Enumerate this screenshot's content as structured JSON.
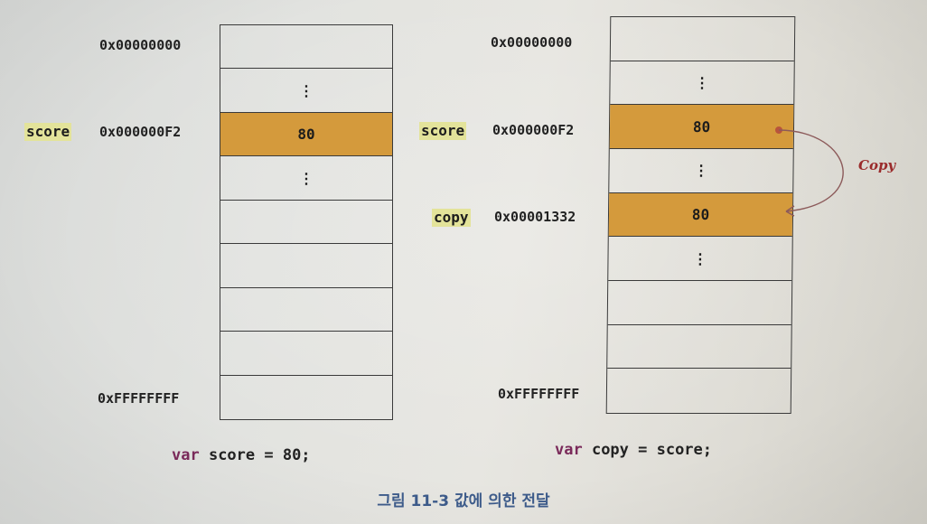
{
  "left": {
    "addr_top": "0x00000000",
    "addr_score": "0x000000F2",
    "addr_bottom": "0xFFFFFFFF",
    "var_score": "score",
    "cells": [
      {
        "text": ""
      },
      {
        "text": "⋮"
      },
      {
        "text": "80",
        "filled": true
      },
      {
        "text": "⋮"
      },
      {
        "text": ""
      },
      {
        "text": ""
      },
      {
        "text": ""
      },
      {
        "text": ""
      },
      {
        "text": ""
      }
    ],
    "code_kw": "var",
    "code_rest": " score = 80;"
  },
  "right": {
    "addr_top": "0x00000000",
    "addr_score": "0x000000F2",
    "addr_copy": "0x00001332",
    "addr_bottom": "0xFFFFFFFF",
    "var_score": "score",
    "var_copy": "copy",
    "cells": [
      {
        "text": ""
      },
      {
        "text": "⋮"
      },
      {
        "text": "80",
        "filled": true
      },
      {
        "text": "⋮"
      },
      {
        "text": "80",
        "filled": true
      },
      {
        "text": "⋮"
      },
      {
        "text": ""
      },
      {
        "text": ""
      },
      {
        "text": ""
      }
    ],
    "code_kw": "var",
    "code_rest": " copy = score;",
    "arrow_label": "Copy"
  },
  "caption": "그림 11-3 값에 의한 전달",
  "colors": {
    "filled": "#d49a3c",
    "arrow": "#8c5a5a",
    "highlight": "#e3e39a",
    "caption": "#3d5b8a"
  }
}
